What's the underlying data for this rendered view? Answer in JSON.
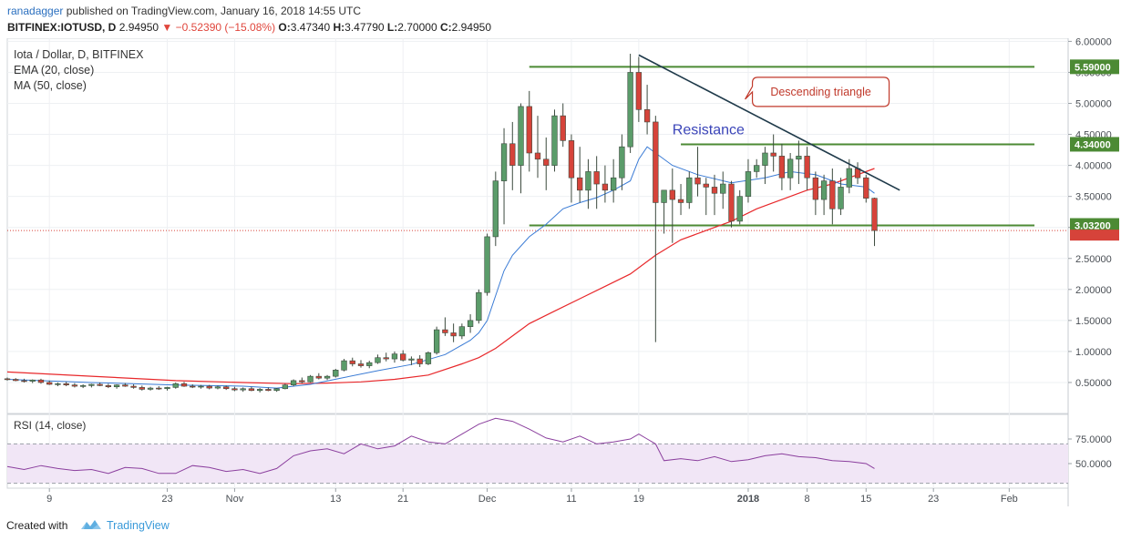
{
  "header": {
    "author": "ranadagger",
    "published_text": "published on TradingView.com, January 16, 2018 14:55 UTC",
    "symbol": "BITFINEX:IOTUSD, D",
    "last": "2.94950",
    "change": "−0.52390 (−15.08%)",
    "o_label": "O:",
    "o": "3.47340",
    "h_label": "H:",
    "h": "3.47790",
    "l_label": "L:",
    "l": "2.70000",
    "c_label": "C:",
    "c": "2.94950"
  },
  "legend": {
    "title": "Iota / Dollar, D, BITFINEX",
    "ema": "EMA (20, close)",
    "ma": "MA (50, close)"
  },
  "rsi_label": "RSI (14, close)",
  "footer": {
    "created_with": "Created with",
    "brand": "TradingView"
  },
  "colors": {
    "up": "#5b9c6a",
    "down": "#d6433a",
    "ema": "#3a7bd5",
    "ma": "#e8282b",
    "level": "#4c8a34",
    "trend": "#1f3a4a",
    "rsi_line": "#8b3f9e",
    "rsi_band": "#f1e6f6",
    "resistance_text": "#3a44b8",
    "annotation_border": "#c0392b",
    "annotation_text": "#c0392b"
  },
  "chart_data": {
    "type": "candlestick",
    "title": "Iota / Dollar, D, BITFINEX",
    "price_axis": {
      "ticks": [
        "6.00000",
        "5.50000",
        "5.00000",
        "4.50000",
        "4.00000",
        "3.50000",
        "3.00000",
        "2.50000",
        "2.00000",
        "1.50000",
        "1.00000",
        "0.50000"
      ],
      "ylim": [
        0.0,
        6.05
      ]
    },
    "x_ticks": [
      {
        "label": "9",
        "index": 5
      },
      {
        "label": "23",
        "index": 19
      },
      {
        "label": "Nov",
        "index": 27
      },
      {
        "label": "13",
        "index": 39
      },
      {
        "label": "21",
        "index": 47
      },
      {
        "label": "Dec",
        "index": 57
      },
      {
        "label": "11",
        "index": 67
      },
      {
        "label": "19",
        "index": 75
      },
      {
        "label": "2018",
        "index": 88
      },
      {
        "label": "8",
        "index": 95
      },
      {
        "label": "15",
        "index": 102
      },
      {
        "label": "23",
        "index": 110
      },
      {
        "label": "Feb",
        "index": 119
      }
    ],
    "x_range": [
      0,
      126
    ],
    "candles": [
      [
        0.56,
        0.58,
        0.53,
        0.55
      ],
      [
        0.55,
        0.57,
        0.52,
        0.53
      ],
      [
        0.53,
        0.56,
        0.5,
        0.52
      ],
      [
        0.52,
        0.55,
        0.49,
        0.54
      ],
      [
        0.54,
        0.56,
        0.48,
        0.5
      ],
      [
        0.5,
        0.53,
        0.46,
        0.47
      ],
      [
        0.47,
        0.5,
        0.44,
        0.48
      ],
      [
        0.48,
        0.51,
        0.44,
        0.46
      ],
      [
        0.46,
        0.49,
        0.42,
        0.44
      ],
      [
        0.44,
        0.47,
        0.41,
        0.45
      ],
      [
        0.45,
        0.48,
        0.42,
        0.47
      ],
      [
        0.47,
        0.5,
        0.44,
        0.45
      ],
      [
        0.45,
        0.48,
        0.41,
        0.43
      ],
      [
        0.43,
        0.47,
        0.4,
        0.46
      ],
      [
        0.46,
        0.49,
        0.43,
        0.44
      ],
      [
        0.44,
        0.47,
        0.4,
        0.42
      ],
      [
        0.42,
        0.45,
        0.37,
        0.39
      ],
      [
        0.39,
        0.43,
        0.37,
        0.41
      ],
      [
        0.41,
        0.44,
        0.38,
        0.4
      ],
      [
        0.4,
        0.43,
        0.37,
        0.42
      ],
      [
        0.42,
        0.5,
        0.4,
        0.48
      ],
      [
        0.48,
        0.51,
        0.43,
        0.44
      ],
      [
        0.44,
        0.47,
        0.41,
        0.43
      ],
      [
        0.43,
        0.46,
        0.4,
        0.44
      ],
      [
        0.44,
        0.46,
        0.39,
        0.41
      ],
      [
        0.41,
        0.45,
        0.39,
        0.43
      ],
      [
        0.43,
        0.45,
        0.38,
        0.4
      ],
      [
        0.4,
        0.43,
        0.36,
        0.38
      ],
      [
        0.38,
        0.42,
        0.35,
        0.4
      ],
      [
        0.4,
        0.43,
        0.36,
        0.37
      ],
      [
        0.37,
        0.41,
        0.34,
        0.39
      ],
      [
        0.39,
        0.42,
        0.36,
        0.37
      ],
      [
        0.37,
        0.41,
        0.35,
        0.4
      ],
      [
        0.4,
        0.48,
        0.39,
        0.46
      ],
      [
        0.46,
        0.55,
        0.44,
        0.53
      ],
      [
        0.53,
        0.58,
        0.49,
        0.51
      ],
      [
        0.51,
        0.62,
        0.5,
        0.6
      ],
      [
        0.6,
        0.65,
        0.55,
        0.57
      ],
      [
        0.57,
        0.62,
        0.54,
        0.6
      ],
      [
        0.6,
        0.72,
        0.58,
        0.7
      ],
      [
        0.7,
        0.88,
        0.68,
        0.85
      ],
      [
        0.85,
        0.9,
        0.76,
        0.8
      ],
      [
        0.8,
        0.86,
        0.74,
        0.77
      ],
      [
        0.77,
        0.85,
        0.73,
        0.82
      ],
      [
        0.82,
        0.95,
        0.8,
        0.9
      ],
      [
        0.9,
        0.98,
        0.84,
        0.88
      ],
      [
        0.88,
        1.0,
        0.82,
        0.96
      ],
      [
        0.96,
        1.02,
        0.84,
        0.86
      ],
      [
        0.86,
        0.92,
        0.78,
        0.88
      ],
      [
        0.88,
        0.94,
        0.75,
        0.8
      ],
      [
        0.8,
        1.0,
        0.78,
        0.98
      ],
      [
        0.98,
        1.4,
        0.95,
        1.35
      ],
      [
        1.35,
        1.55,
        1.25,
        1.3
      ],
      [
        1.3,
        1.45,
        1.15,
        1.25
      ],
      [
        1.25,
        1.45,
        1.2,
        1.4
      ],
      [
        1.4,
        1.6,
        1.3,
        1.5
      ],
      [
        1.5,
        2.0,
        1.45,
        1.95
      ],
      [
        1.95,
        2.9,
        1.9,
        2.85
      ],
      [
        2.85,
        3.9,
        2.7,
        3.75
      ],
      [
        3.75,
        4.6,
        3.05,
        4.35
      ],
      [
        4.35,
        4.7,
        3.6,
        4.0
      ],
      [
        4.0,
        5.0,
        3.55,
        4.95
      ],
      [
        4.95,
        5.2,
        3.9,
        4.2
      ],
      [
        4.2,
        4.8,
        3.8,
        4.1
      ],
      [
        4.1,
        4.45,
        3.6,
        4.0
      ],
      [
        4.0,
        4.9,
        3.9,
        4.8
      ],
      [
        4.8,
        5.0,
        4.3,
        4.4
      ],
      [
        4.4,
        4.5,
        3.4,
        3.8
      ],
      [
        3.8,
        4.3,
        3.4,
        3.6
      ],
      [
        3.6,
        4.1,
        3.3,
        3.9
      ],
      [
        3.9,
        4.15,
        3.3,
        3.7
      ],
      [
        3.7,
        4.0,
        3.4,
        3.6
      ],
      [
        3.6,
        4.1,
        3.4,
        3.8
      ],
      [
        3.8,
        4.5,
        3.6,
        4.3
      ],
      [
        4.3,
        5.8,
        4.2,
        5.5
      ],
      [
        5.5,
        5.75,
        4.7,
        4.9
      ],
      [
        4.9,
        5.3,
        4.5,
        4.7
      ],
      [
        4.7,
        4.8,
        1.15,
        3.4
      ],
      [
        3.4,
        3.6,
        2.9,
        3.6
      ],
      [
        3.6,
        3.95,
        2.75,
        3.45
      ],
      [
        3.45,
        3.7,
        3.2,
        3.4
      ],
      [
        3.4,
        3.9,
        3.3,
        3.8
      ],
      [
        3.8,
        4.3,
        3.5,
        3.7
      ],
      [
        3.7,
        3.8,
        3.2,
        3.65
      ],
      [
        3.65,
        3.85,
        3.2,
        3.55
      ],
      [
        3.55,
        3.9,
        3.3,
        3.7
      ],
      [
        3.7,
        3.75,
        3.0,
        3.1
      ],
      [
        3.1,
        3.6,
        3.05,
        3.5
      ],
      [
        3.5,
        4.1,
        3.4,
        3.9
      ],
      [
        3.9,
        4.1,
        3.8,
        4.0
      ],
      [
        4.0,
        4.3,
        3.7,
        4.2
      ],
      [
        4.2,
        4.5,
        3.9,
        4.15
      ],
      [
        4.15,
        4.35,
        3.6,
        3.8
      ],
      [
        3.8,
        4.2,
        3.6,
        4.1
      ],
      [
        4.1,
        4.4,
        3.7,
        4.15
      ],
      [
        4.15,
        4.3,
        3.6,
        3.8
      ],
      [
        3.8,
        3.9,
        3.2,
        3.45
      ],
      [
        3.45,
        3.85,
        3.2,
        3.75
      ],
      [
        3.75,
        3.95,
        3.05,
        3.3
      ],
      [
        3.3,
        3.8,
        3.2,
        3.65
      ],
      [
        3.65,
        4.1,
        3.55,
        3.95
      ],
      [
        3.95,
        4.05,
        3.7,
        3.8
      ],
      [
        3.8,
        3.85,
        3.4,
        3.47
      ],
      [
        3.47,
        3.48,
        2.7,
        2.95
      ]
    ],
    "ema20": [
      [
        0,
        0.55
      ],
      [
        10,
        0.5
      ],
      [
        20,
        0.46
      ],
      [
        28,
        0.44
      ],
      [
        32,
        0.41
      ],
      [
        36,
        0.47
      ],
      [
        40,
        0.58
      ],
      [
        44,
        0.69
      ],
      [
        48,
        0.79
      ],
      [
        52,
        0.95
      ],
      [
        55,
        1.18
      ],
      [
        56,
        1.3
      ],
      [
        57,
        1.5
      ],
      [
        58,
        1.9
      ],
      [
        59,
        2.3
      ],
      [
        60,
        2.55
      ],
      [
        62,
        2.85
      ],
      [
        64,
        3.05
      ],
      [
        66,
        3.3
      ],
      [
        68,
        3.4
      ],
      [
        70,
        3.48
      ],
      [
        72,
        3.6
      ],
      [
        74,
        3.75
      ],
      [
        75,
        4.1
      ],
      [
        76,
        4.3
      ],
      [
        77,
        4.2
      ],
      [
        79,
        4.0
      ],
      [
        82,
        3.85
      ],
      [
        86,
        3.72
      ],
      [
        90,
        3.8
      ],
      [
        93,
        3.9
      ],
      [
        96,
        3.85
      ],
      [
        99,
        3.7
      ],
      [
        102,
        3.65
      ],
      [
        103,
        3.55
      ]
    ],
    "ma50": [
      [
        0,
        0.67
      ],
      [
        10,
        0.6
      ],
      [
        20,
        0.53
      ],
      [
        28,
        0.5
      ],
      [
        34,
        0.48
      ],
      [
        38,
        0.49
      ],
      [
        42,
        0.51
      ],
      [
        46,
        0.55
      ],
      [
        50,
        0.62
      ],
      [
        54,
        0.8
      ],
      [
        56,
        0.9
      ],
      [
        58,
        1.05
      ],
      [
        60,
        1.25
      ],
      [
        62,
        1.45
      ],
      [
        65,
        1.65
      ],
      [
        68,
        1.85
      ],
      [
        71,
        2.05
      ],
      [
        74,
        2.25
      ],
      [
        77,
        2.55
      ],
      [
        80,
        2.8
      ],
      [
        83,
        2.95
      ],
      [
        86,
        3.1
      ],
      [
        89,
        3.3
      ],
      [
        92,
        3.45
      ],
      [
        95,
        3.6
      ],
      [
        98,
        3.7
      ],
      [
        101,
        3.85
      ],
      [
        103,
        3.95
      ]
    ],
    "levels": [
      {
        "price": 5.59,
        "label": "5.59000",
        "from": 62,
        "to": 122
      },
      {
        "price": 4.34,
        "label": "4.34000",
        "from": 80,
        "to": 122
      },
      {
        "price": 3.032,
        "label": "3.03200",
        "from": 62,
        "to": 122
      }
    ],
    "last_price": 2.9495,
    "trendline": {
      "from": [
        75,
        5.78
      ],
      "to": [
        106,
        3.6
      ]
    },
    "annotations": {
      "resistance": "Resistance",
      "pattern": "Descending triangle"
    },
    "rsi": {
      "ticks": [
        "75.0000",
        "50.0000"
      ],
      "ylim": [
        25,
        100
      ],
      "band": [
        30,
        70
      ],
      "values": [
        [
          0,
          47
        ],
        [
          2,
          44
        ],
        [
          4,
          48
        ],
        [
          6,
          45
        ],
        [
          8,
          43
        ],
        [
          10,
          44
        ],
        [
          12,
          40
        ],
        [
          14,
          46
        ],
        [
          16,
          45
        ],
        [
          18,
          40
        ],
        [
          20,
          40
        ],
        [
          22,
          48
        ],
        [
          24,
          46
        ],
        [
          26,
          42
        ],
        [
          28,
          44
        ],
        [
          30,
          40
        ],
        [
          32,
          45
        ],
        [
          34,
          58
        ],
        [
          36,
          63
        ],
        [
          38,
          65
        ],
        [
          40,
          60
        ],
        [
          42,
          70
        ],
        [
          44,
          65
        ],
        [
          46,
          68
        ],
        [
          48,
          78
        ],
        [
          50,
          72
        ],
        [
          52,
          70
        ],
        [
          54,
          80
        ],
        [
          56,
          90
        ],
        [
          58,
          96
        ],
        [
          60,
          93
        ],
        [
          62,
          85
        ],
        [
          64,
          76
        ],
        [
          66,
          72
        ],
        [
          68,
          78
        ],
        [
          70,
          70
        ],
        [
          72,
          72
        ],
        [
          74,
          75
        ],
        [
          75,
          80
        ],
        [
          76,
          75
        ],
        [
          77,
          70
        ],
        [
          78,
          53
        ],
        [
          80,
          55
        ],
        [
          82,
          53
        ],
        [
          84,
          57
        ],
        [
          86,
          52
        ],
        [
          88,
          54
        ],
        [
          90,
          58
        ],
        [
          92,
          60
        ],
        [
          94,
          57
        ],
        [
          96,
          56
        ],
        [
          98,
          53
        ],
        [
          100,
          52
        ],
        [
          102,
          50
        ],
        [
          103,
          45
        ]
      ]
    }
  }
}
